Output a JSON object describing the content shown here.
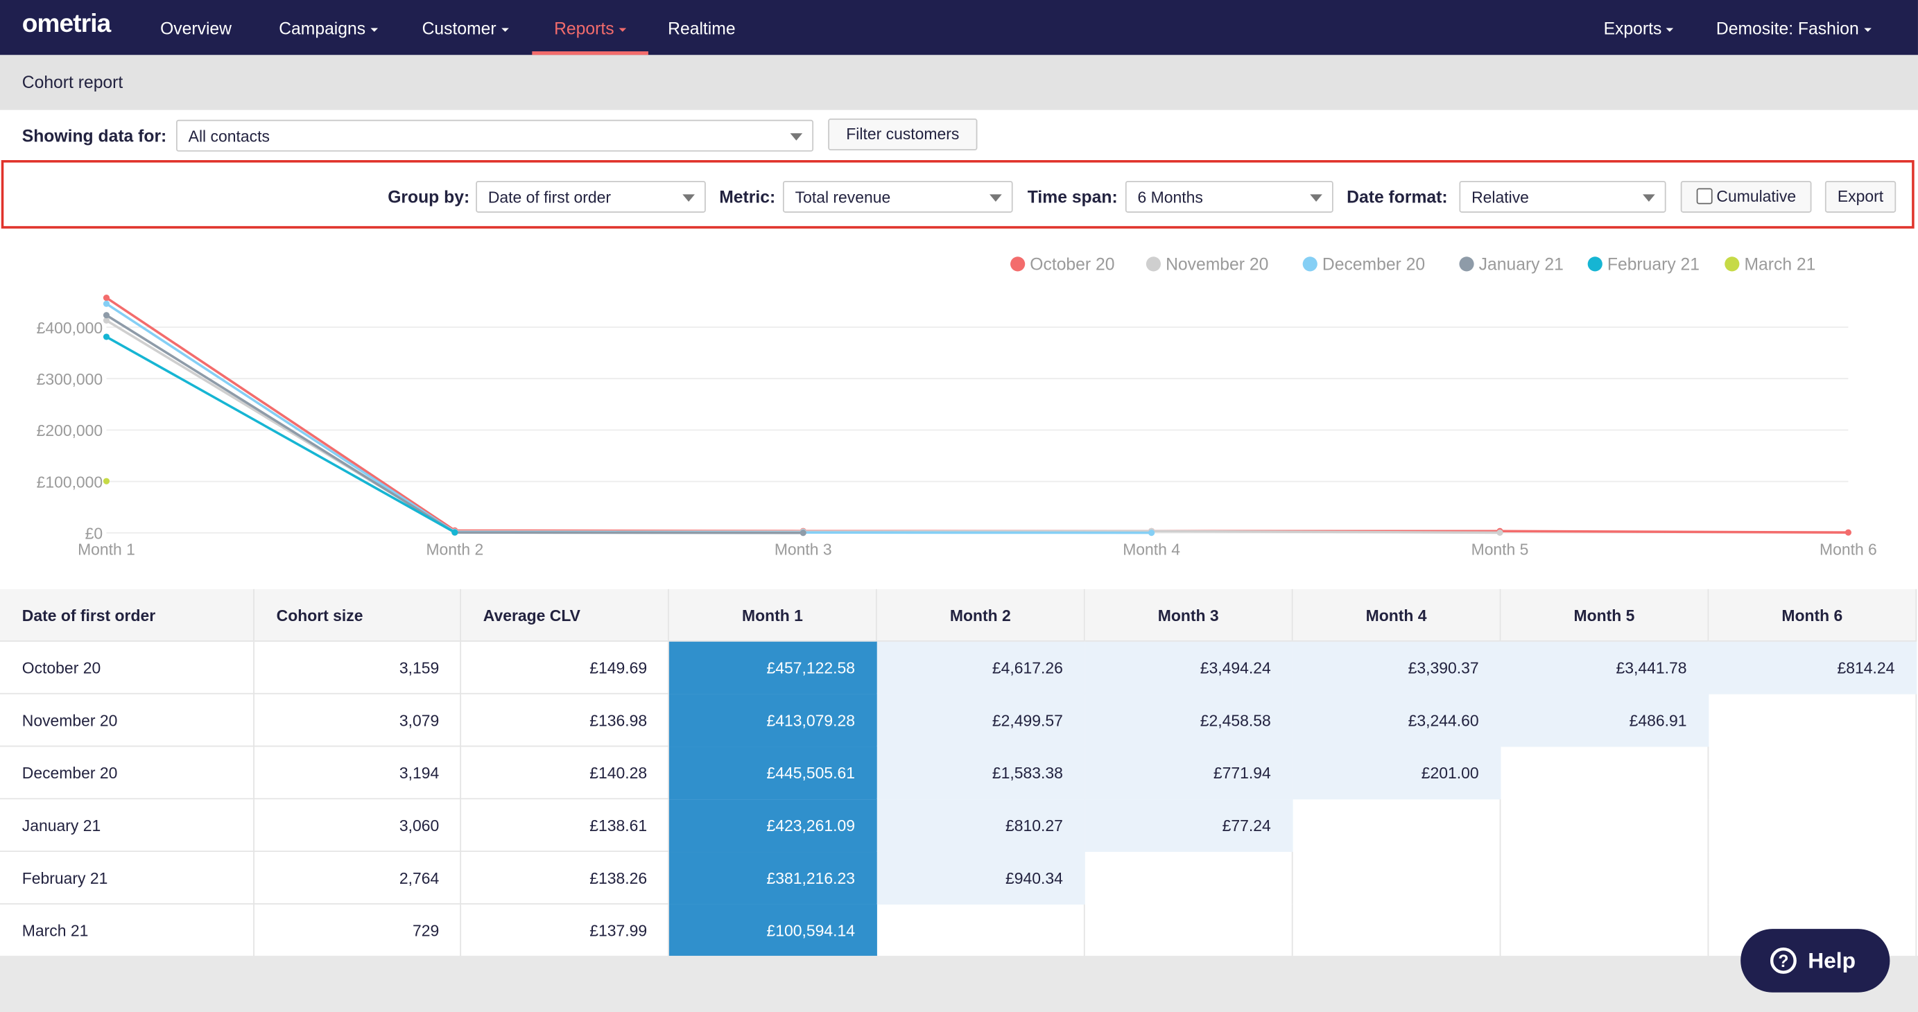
{
  "nav": {
    "logo": "ometria",
    "left": [
      {
        "label": "Overview",
        "dropdown": false
      },
      {
        "label": "Campaigns",
        "dropdown": true
      },
      {
        "label": "Customer",
        "dropdown": true
      },
      {
        "label": "Reports",
        "dropdown": true
      },
      {
        "label": "Realtime",
        "dropdown": false
      }
    ],
    "active": 3,
    "right": [
      {
        "label": "Exports",
        "dropdown": true
      },
      {
        "label": "Demosite: Fashion",
        "dropdown": true
      }
    ]
  },
  "header": {
    "title": "Cohort report"
  },
  "filters": {
    "label": "Showing data for:",
    "select": "All contacts",
    "button": "Filter customers"
  },
  "toolbar": {
    "group_by": {
      "label": "Group by:",
      "value": "Date of first order"
    },
    "metric": {
      "label": "Metric:",
      "value": "Total revenue"
    },
    "time_span": {
      "label": "Time span:",
      "value": "6 Months"
    },
    "date_format": {
      "label": "Date format:",
      "value": "Relative"
    },
    "cumulative": "Cumulative",
    "export": "Export"
  },
  "chart_data": {
    "type": "line",
    "categories": [
      "Month 1",
      "Month 2",
      "Month 3",
      "Month 4",
      "Month 5",
      "Month 6"
    ],
    "series": [
      {
        "name": "October 20",
        "color": "#f36c6c",
        "values": [
          457122.58,
          4617.26,
          3494.24,
          3390.37,
          3441.78,
          814.24
        ]
      },
      {
        "name": "November 20",
        "color": "#cfcfcf",
        "values": [
          413079.28,
          2499.57,
          2458.58,
          3244.6,
          486.91,
          null
        ]
      },
      {
        "name": "December 20",
        "color": "#85cff5",
        "values": [
          445505.61,
          1583.38,
          771.94,
          201.0,
          null,
          null
        ]
      },
      {
        "name": "January 21",
        "color": "#8e9ba8",
        "values": [
          423261.09,
          810.27,
          77.24,
          null,
          null,
          null
        ]
      },
      {
        "name": "February 21",
        "color": "#16b5d3",
        "values": [
          381216.23,
          940.34,
          null,
          null,
          null,
          null
        ]
      },
      {
        "name": "March 21",
        "color": "#c6da46",
        "values": [
          100594.14,
          null,
          null,
          null,
          null,
          null
        ]
      }
    ],
    "ylim": [
      0,
      480000
    ],
    "yticks": [
      {
        "value": 0,
        "label": "£0"
      },
      {
        "value": 100000,
        "label": "£100,000"
      },
      {
        "value": 200000,
        "label": "£200,000"
      },
      {
        "value": 300000,
        "label": "£300,000"
      },
      {
        "value": 400000,
        "label": "£400,000"
      }
    ],
    "grid": true,
    "legend": "top-right"
  },
  "table": {
    "columns": [
      "Date of first order",
      "Cohort size",
      "Average CLV",
      "Month 1",
      "Month 2",
      "Month 3",
      "Month 4",
      "Month 5",
      "Month 6"
    ],
    "rows": [
      [
        "October 20",
        "3,159",
        "£149.69",
        "£457,122.58",
        "£4,617.26",
        "£3,494.24",
        "£3,390.37",
        "£3,441.78",
        "£814.24"
      ],
      [
        "November 20",
        "3,079",
        "£136.98",
        "£413,079.28",
        "£2,499.57",
        "£2,458.58",
        "£3,244.60",
        "£486.91"
      ],
      [
        "December 20",
        "3,194",
        "£140.28",
        "£445,505.61",
        "£1,583.38",
        "£771.94",
        "£201.00"
      ],
      [
        "January 21",
        "3,060",
        "£138.61",
        "£423,261.09",
        "£810.27",
        "£77.24"
      ],
      [
        "February 21",
        "2,764",
        "£138.26",
        "£381,216.23",
        "£940.34"
      ],
      [
        "March 21",
        "729",
        "£137.99",
        "£100,594.14"
      ]
    ]
  },
  "help": "Help"
}
